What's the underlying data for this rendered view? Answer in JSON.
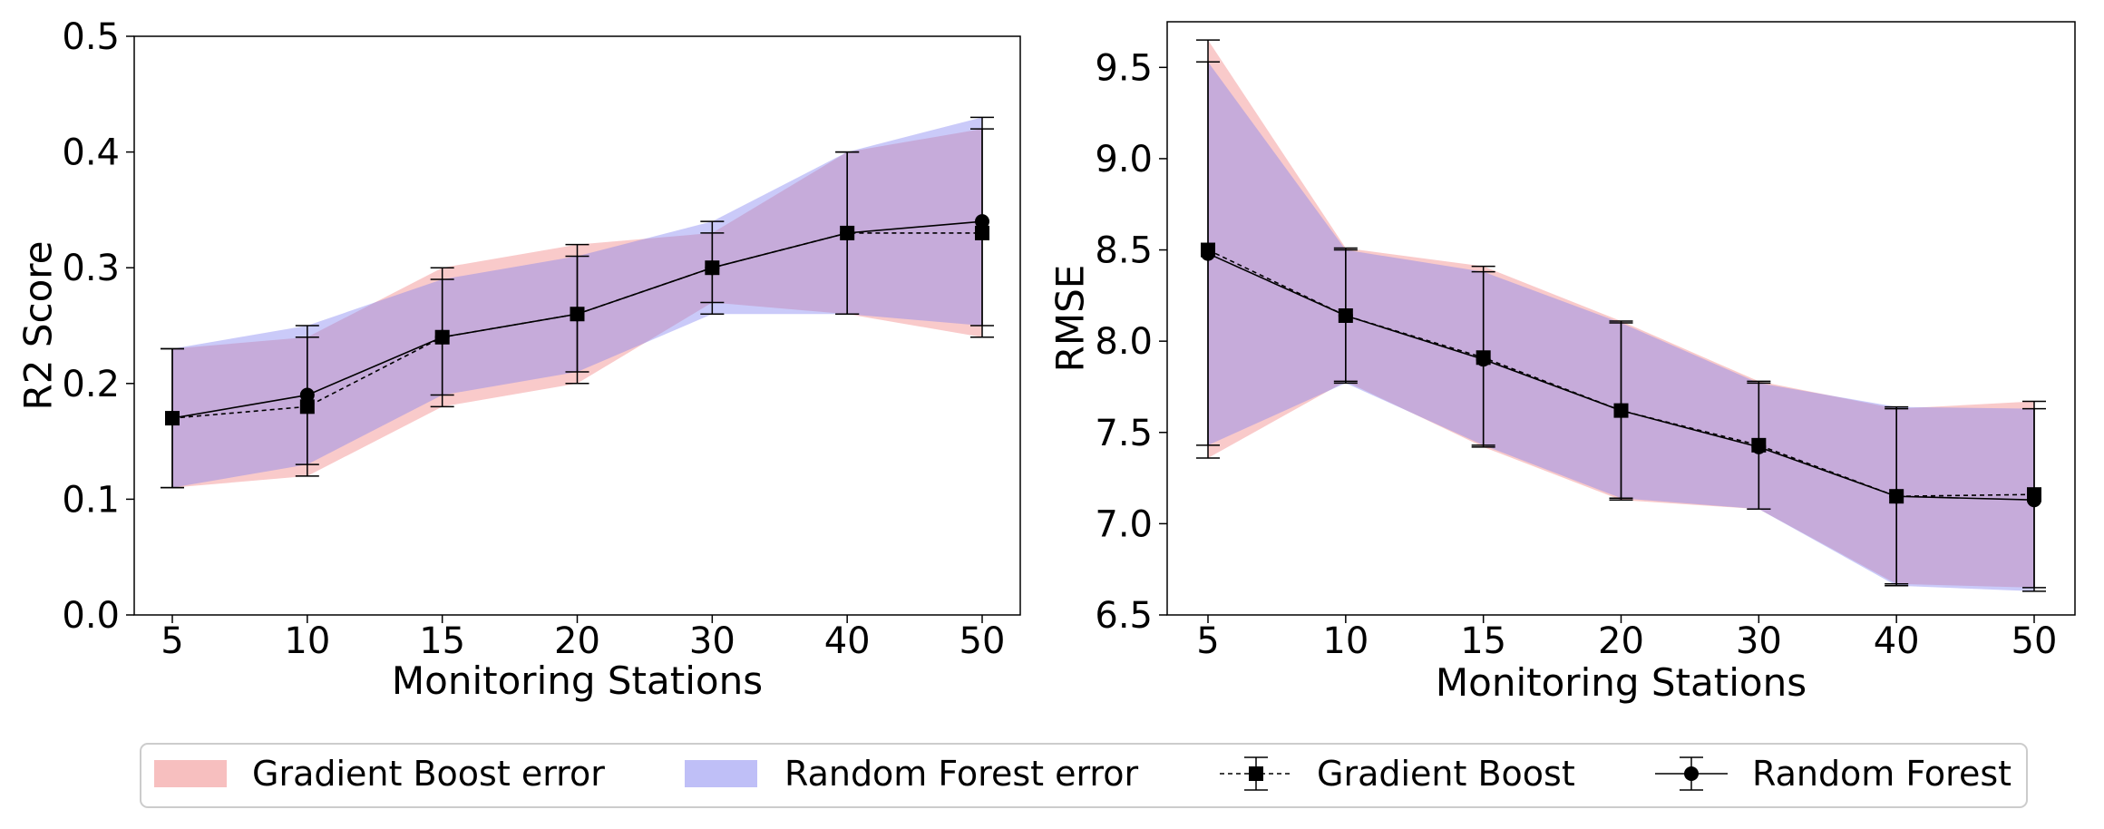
{
  "chart_data": [
    {
      "type": "line",
      "xlabel": "Monitoring Stations",
      "ylabel": "R2 Score",
      "categories": [
        "5",
        "10",
        "15",
        "20",
        "30",
        "40",
        "50"
      ],
      "ylim": [
        0.0,
        0.5
      ],
      "yticks": [
        "0.0",
        "0.1",
        "0.2",
        "0.3",
        "0.4",
        "0.5"
      ],
      "series": [
        {
          "name": "Gradient Boost",
          "values": [
            0.17,
            0.18,
            0.24,
            0.26,
            0.3,
            0.33,
            0.33
          ],
          "err_low": [
            0.11,
            0.12,
            0.18,
            0.2,
            0.27,
            0.26,
            0.24
          ],
          "err_high": [
            0.23,
            0.24,
            0.3,
            0.32,
            0.33,
            0.4,
            0.42
          ]
        },
        {
          "name": "Random Forest",
          "values": [
            0.17,
            0.19,
            0.24,
            0.26,
            0.3,
            0.33,
            0.34
          ],
          "err_low": [
            0.11,
            0.13,
            0.19,
            0.21,
            0.26,
            0.26,
            0.25
          ],
          "err_high": [
            0.23,
            0.25,
            0.29,
            0.31,
            0.34,
            0.4,
            0.43
          ]
        }
      ]
    },
    {
      "type": "line",
      "xlabel": "Monitoring Stations",
      "ylabel": "RMSE",
      "categories": [
        "5",
        "10",
        "15",
        "20",
        "30",
        "40",
        "50"
      ],
      "ylim": [
        6.5,
        9.75
      ],
      "yticks": [
        "6.5",
        "7.0",
        "7.5",
        "8.0",
        "8.5",
        "9.0",
        "9.5"
      ],
      "series": [
        {
          "name": "Gradient Boost",
          "values": [
            8.5,
            8.14,
            7.91,
            7.62,
            7.43,
            7.15,
            7.16
          ],
          "err_low": [
            7.36,
            7.78,
            7.42,
            7.13,
            7.08,
            6.67,
            6.65
          ],
          "err_high": [
            9.65,
            8.51,
            8.41,
            8.11,
            7.78,
            7.63,
            7.67
          ]
        },
        {
          "name": "Random Forest",
          "values": [
            8.48,
            8.14,
            7.9,
            7.62,
            7.42,
            7.15,
            7.13
          ],
          "err_low": [
            7.43,
            7.77,
            7.43,
            7.14,
            7.08,
            6.66,
            6.63
          ],
          "err_high": [
            9.53,
            8.5,
            8.38,
            8.1,
            7.77,
            7.64,
            7.63
          ]
        }
      ]
    }
  ],
  "legend": {
    "placement": "bottom-center",
    "items": [
      {
        "label": "Gradient Boost error",
        "kind": "fill",
        "color": "#f4a4a4"
      },
      {
        "label": "Random Forest error",
        "kind": "fill",
        "color": "#a4a4f4"
      },
      {
        "label": "Gradient Boost",
        "kind": "line-dashed-square"
      },
      {
        "label": "Random Forest",
        "kind": "line-solid-circle"
      }
    ]
  },
  "colors": {
    "gb_fill": "#f08080",
    "rf_fill": "#8080f0",
    "line": "#000000"
  }
}
